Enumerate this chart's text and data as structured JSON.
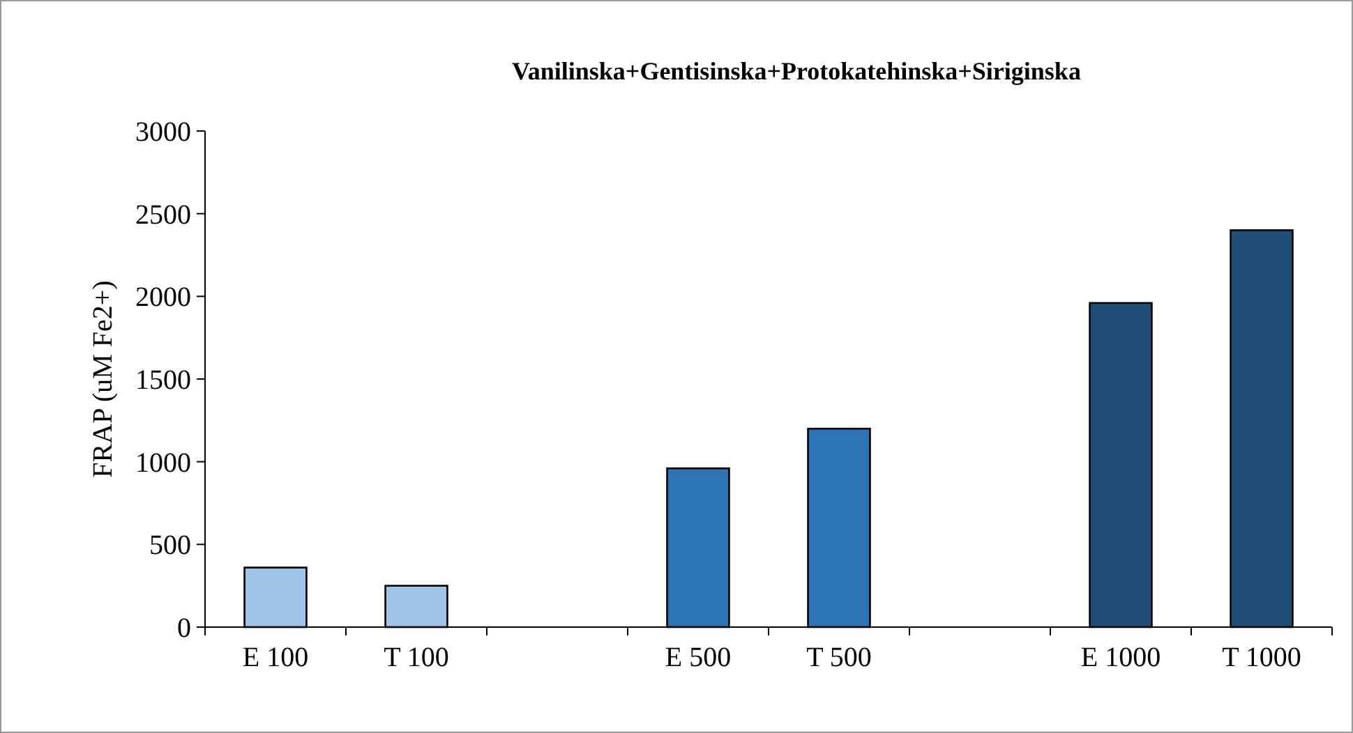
{
  "chart_data": {
    "type": "bar",
    "title": "Vanilinska+Gentisinska+Protokatehinska+Siriginska",
    "ylabel": "FRAP (uM Fe2+)",
    "categories": [
      "E 100",
      "T 100",
      null,
      "E 500",
      "T 500",
      null,
      "E 1000",
      "T 1000"
    ],
    "values": [
      360,
      250,
      null,
      960,
      1200,
      null,
      1960,
      2400
    ],
    "colors": [
      "#9dc3e6",
      "#9dc3e6",
      null,
      "#2e75b6",
      "#2e75b6",
      null,
      "#1f4e79",
      "#1f4e79"
    ],
    "ylim": [
      0,
      3000
    ],
    "yticks": [
      0,
      500,
      1000,
      1500,
      2000,
      2500,
      3000
    ],
    "grid": false
  }
}
